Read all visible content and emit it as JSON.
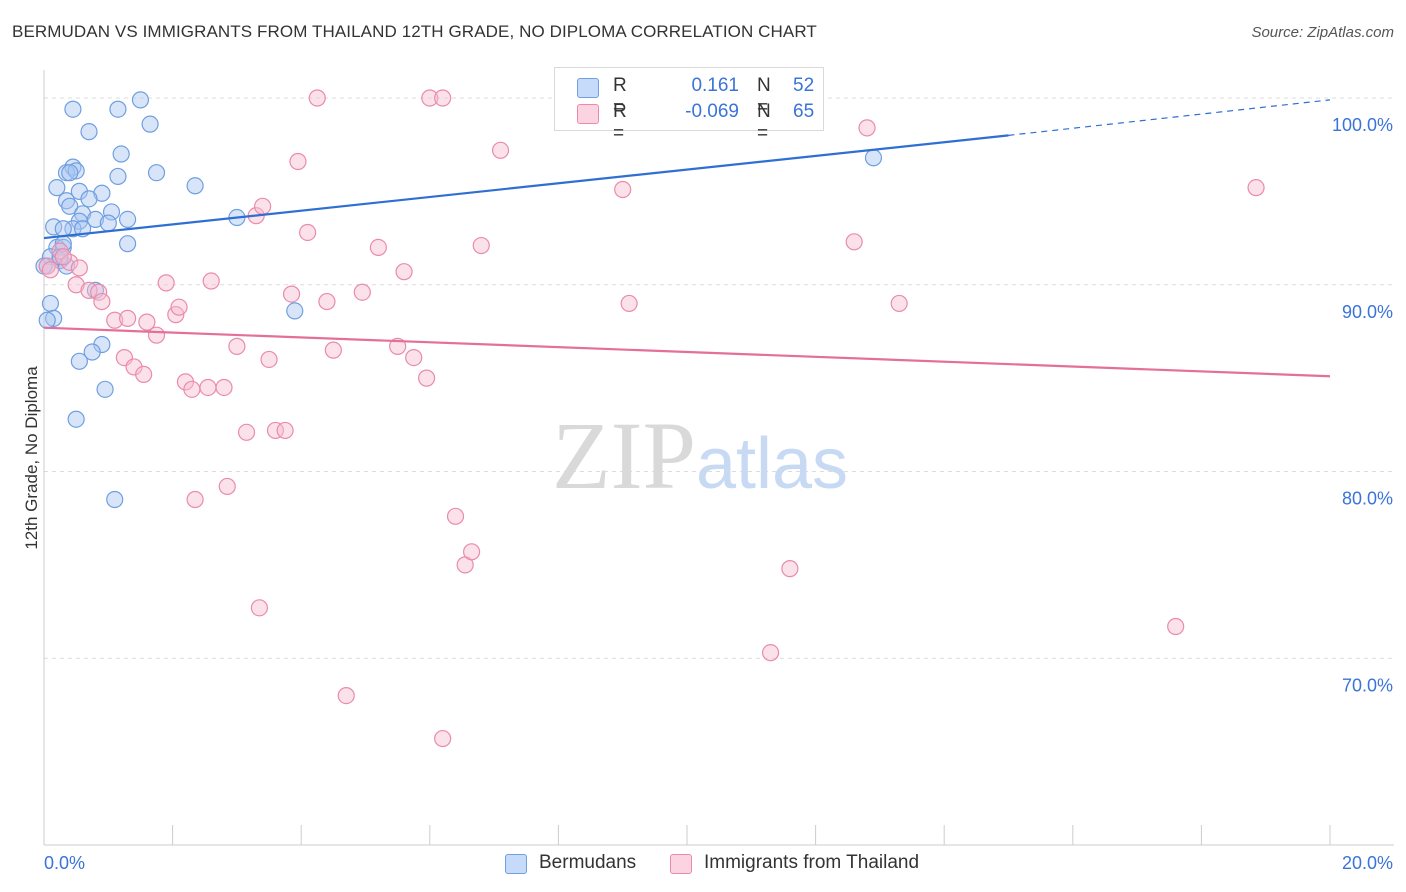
{
  "header": {
    "title": "BERMUDAN VS IMMIGRANTS FROM THAILAND 12TH GRADE, NO DIPLOMA CORRELATION CHART",
    "source": "Source: ZipAtlas.com"
  },
  "legend": {
    "r_label": "R =",
    "n_label": "N =",
    "rows": [
      {
        "r": "0.161",
        "n": "52"
      },
      {
        "r": "-0.069",
        "n": "65"
      }
    ]
  },
  "watermark": {
    "part1": "ZIP",
    "part2": "atlas"
  },
  "colors": {
    "blue_fill": "#a9c6f2",
    "blue_stroke": "#6f9fe0",
    "blue_line": "#2f6fd1",
    "pink_fill": "#f6bcd0",
    "pink_stroke": "#ea8bab",
    "pink_line": "#e36f9a",
    "tick_label": "#3a74d8",
    "grid": "#dcdcdc"
  },
  "chart_data": {
    "type": "scatter",
    "title": "BERMUDAN VS IMMIGRANTS FROM THAILAND 12TH GRADE, NO DIPLOMA CORRELATION CHART",
    "xlabel": "",
    "ylabel": "12th Grade, No Diploma",
    "xlim": [
      0,
      20
    ],
    "ylim": [
      60,
      101.5
    ],
    "x_tick_labels": [
      "0.0%",
      "20.0%"
    ],
    "y_ticks": [
      70,
      80,
      90,
      100
    ],
    "y_tick_labels": [
      "70.0%",
      "80.0%",
      "90.0%",
      "100.0%"
    ],
    "grid": true,
    "legend_position": "top-center and bottom",
    "series": [
      {
        "name": "Bermudans",
        "color": "#a9c6f2",
        "trend": {
          "x": [
            0,
            15
          ],
          "y": [
            92.5,
            98.0
          ],
          "dashed_to": [
            20,
            99.9
          ]
        },
        "points": [
          [
            1.5,
            99.9
          ],
          [
            0.45,
            99.4
          ],
          [
            1.15,
            99.4
          ],
          [
            1.65,
            98.6
          ],
          [
            0.7,
            98.2
          ],
          [
            1.2,
            97.0
          ],
          [
            0.45,
            96.3
          ],
          [
            0.35,
            96.0
          ],
          [
            0.5,
            96.1
          ],
          [
            1.75,
            96.0
          ],
          [
            1.15,
            95.8
          ],
          [
            0.2,
            95.2
          ],
          [
            0.55,
            95.0
          ],
          [
            0.9,
            94.9
          ],
          [
            0.7,
            94.6
          ],
          [
            0.35,
            94.5
          ],
          [
            0.4,
            94.2
          ],
          [
            0.6,
            93.8
          ],
          [
            1.05,
            93.9
          ],
          [
            0.8,
            93.5
          ],
          [
            0.55,
            93.4
          ],
          [
            1.3,
            93.5
          ],
          [
            1.0,
            93.3
          ],
          [
            0.15,
            93.1
          ],
          [
            0.45,
            93.0
          ],
          [
            0.3,
            93.0
          ],
          [
            1.3,
            92.2
          ],
          [
            0.2,
            92.0
          ],
          [
            0.3,
            92.0
          ],
          [
            0.1,
            91.5
          ],
          [
            0.25,
            91.3
          ],
          [
            0.35,
            91.0
          ],
          [
            0.05,
            91.0
          ],
          [
            0.8,
            89.7
          ],
          [
            0.1,
            89.0
          ],
          [
            0.15,
            88.2
          ],
          [
            0.05,
            88.1
          ],
          [
            0.9,
            86.8
          ],
          [
            0.75,
            86.4
          ],
          [
            0.55,
            85.9
          ],
          [
            0.95,
            84.4
          ],
          [
            0.5,
            82.8
          ],
          [
            1.1,
            78.5
          ],
          [
            2.35,
            95.3
          ],
          [
            3.0,
            93.6
          ],
          [
            3.9,
            88.6
          ],
          [
            12.9,
            96.8
          ],
          [
            0.0,
            91.0
          ],
          [
            0.25,
            91.5
          ],
          [
            0.6,
            93.0
          ],
          [
            0.4,
            96.0
          ],
          [
            0.3,
            92.2
          ]
        ]
      },
      {
        "name": "Immigrants from Thailand",
        "color": "#f6bcd0",
        "trend": {
          "x": [
            0,
            20
          ],
          "y": [
            87.7,
            85.1
          ]
        },
        "points": [
          [
            0.05,
            91.0
          ],
          [
            0.25,
            91.8
          ],
          [
            0.4,
            91.2
          ],
          [
            0.55,
            90.9
          ],
          [
            0.5,
            90.0
          ],
          [
            0.7,
            89.7
          ],
          [
            0.85,
            89.6
          ],
          [
            0.9,
            89.1
          ],
          [
            1.1,
            88.1
          ],
          [
            1.3,
            88.2
          ],
          [
            1.6,
            88.0
          ],
          [
            1.75,
            87.3
          ],
          [
            1.25,
            86.1
          ],
          [
            1.4,
            85.6
          ],
          [
            1.55,
            85.2
          ],
          [
            1.9,
            90.1
          ],
          [
            2.05,
            88.4
          ],
          [
            2.1,
            88.8
          ],
          [
            2.2,
            84.8
          ],
          [
            2.3,
            84.4
          ],
          [
            2.55,
            84.5
          ],
          [
            2.8,
            84.5
          ],
          [
            2.6,
            90.2
          ],
          [
            3.0,
            86.7
          ],
          [
            3.15,
            82.1
          ],
          [
            2.85,
            79.2
          ],
          [
            2.35,
            78.5
          ],
          [
            3.3,
            93.7
          ],
          [
            3.4,
            94.2
          ],
          [
            3.5,
            86.0
          ],
          [
            3.6,
            82.2
          ],
          [
            3.75,
            82.2
          ],
          [
            3.85,
            89.5
          ],
          [
            3.95,
            96.6
          ],
          [
            4.1,
            92.8
          ],
          [
            4.4,
            89.1
          ],
          [
            4.5,
            86.5
          ],
          [
            4.95,
            89.6
          ],
          [
            5.2,
            92.0
          ],
          [
            5.5,
            86.7
          ],
          [
            5.6,
            90.7
          ],
          [
            5.75,
            86.1
          ],
          [
            5.95,
            85.0
          ],
          [
            6.0,
            100.0
          ],
          [
            6.2,
            100.0
          ],
          [
            6.4,
            77.6
          ],
          [
            6.55,
            75.0
          ],
          [
            6.65,
            75.7
          ],
          [
            6.8,
            92.1
          ],
          [
            7.1,
            97.2
          ],
          [
            4.25,
            100.0
          ],
          [
            9.0,
            95.1
          ],
          [
            9.1,
            89.0
          ],
          [
            11.3,
            70.3
          ],
          [
            11.6,
            74.8
          ],
          [
            12.6,
            92.3
          ],
          [
            12.8,
            98.4
          ],
          [
            13.3,
            89.0
          ],
          [
            17.6,
            71.7
          ],
          [
            18.85,
            95.2
          ],
          [
            3.35,
            72.7
          ],
          [
            4.7,
            68.0
          ],
          [
            6.2,
            65.7
          ],
          [
            0.3,
            91.5
          ],
          [
            0.1,
            90.8
          ]
        ]
      }
    ]
  },
  "bottom_legend": [
    "Bermudans",
    "Immigrants from Thailand"
  ]
}
